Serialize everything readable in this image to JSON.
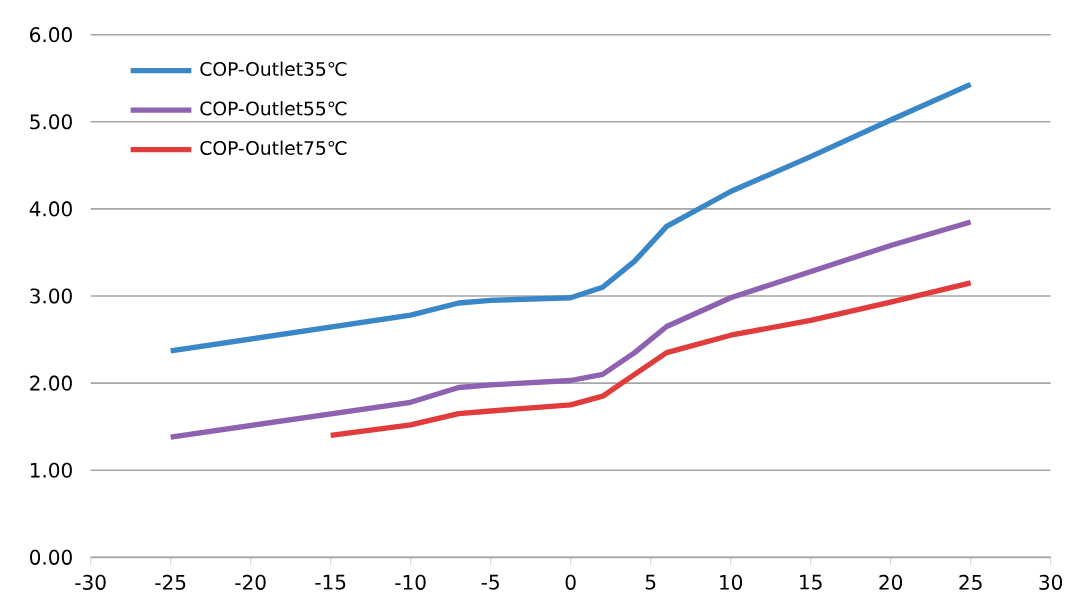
{
  "chart_data": {
    "type": "line",
    "series": [
      {
        "name": "COP-Outlet35℃",
        "color": "#3a87c8",
        "x": [
          -25,
          -10,
          -7,
          -5,
          0,
          2,
          4,
          6,
          10,
          15,
          20,
          25
        ],
        "values": [
          2.37,
          2.78,
          2.92,
          2.95,
          2.98,
          3.1,
          3.4,
          3.8,
          4.2,
          4.6,
          5.02,
          5.43
        ]
      },
      {
        "name": "COP-Outlet55℃",
        "color": "#8e62b0",
        "x": [
          -25,
          -10,
          -7,
          -5,
          0,
          2,
          4,
          6,
          10,
          15,
          20,
          25
        ],
        "values": [
          1.38,
          1.78,
          1.95,
          1.98,
          2.03,
          2.1,
          2.35,
          2.65,
          2.98,
          3.28,
          3.58,
          3.85
        ]
      },
      {
        "name": "COP-Outlet75℃",
        "color": "#e03c3c",
        "x": [
          -15,
          -10,
          -7,
          -5,
          0,
          2,
          4,
          6,
          10,
          15,
          20,
          25
        ],
        "values": [
          1.4,
          1.52,
          1.65,
          1.68,
          1.75,
          1.85,
          2.1,
          2.35,
          2.55,
          2.72,
          2.93,
          3.15
        ]
      }
    ],
    "xlim": [
      -30,
      30
    ],
    "xticks": [
      -30,
      -25,
      -20,
      -15,
      -10,
      -5,
      0,
      5,
      10,
      15,
      20,
      25,
      30
    ],
    "ylim": [
      0,
      6
    ],
    "yticks": [
      {
        "value": 0,
        "label": "0.00"
      },
      {
        "value": 1,
        "label": "1.00"
      },
      {
        "value": 2,
        "label": "2.00"
      },
      {
        "value": 3,
        "label": "3.00"
      },
      {
        "value": 4,
        "label": "4.00"
      },
      {
        "value": 5,
        "label": "5.00"
      },
      {
        "value": 6,
        "label": "6.00"
      }
    ],
    "grid": "y",
    "legend": "top left"
  }
}
